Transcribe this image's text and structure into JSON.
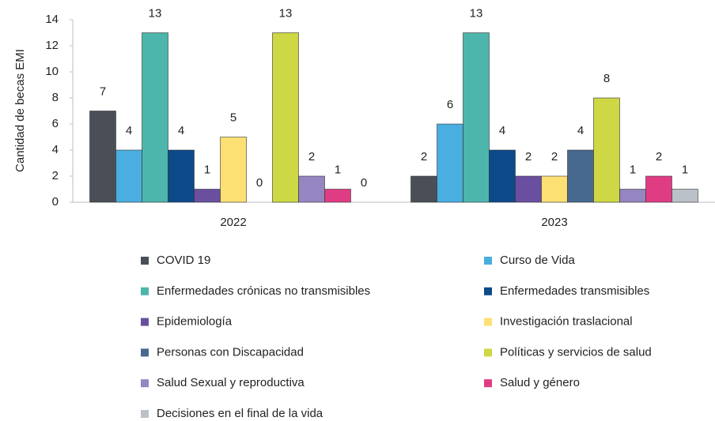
{
  "chart_data": {
    "type": "bar",
    "y_label": "Cantidad de becas EMI",
    "categories": [
      "2022",
      "2023"
    ],
    "ylim": [
      0,
      14
    ],
    "yticks": [
      0,
      2,
      4,
      6,
      8,
      10,
      12,
      14
    ],
    "grid": false,
    "series": [
      {
        "name": "COVID 19",
        "color": "#4a4f57",
        "values": [
          7,
          2
        ]
      },
      {
        "name": "Curso de Vida",
        "color": "#4aaee0",
        "values": [
          4,
          6
        ]
      },
      {
        "name": "Enfermedades crónicas no transmisibles",
        "color": "#4db6ac",
        "values": [
          13,
          13
        ]
      },
      {
        "name": "Enfermedades transmisibles",
        "color": "#0c4a8a",
        "values": [
          4,
          4
        ]
      },
      {
        "name": "Epidemiología",
        "color": "#6a4fa0",
        "values": [
          1,
          2
        ]
      },
      {
        "name": "Investigación traslacional",
        "color": "#fde074",
        "values": [
          5,
          2
        ]
      },
      {
        "name": "Personas con Discapacidad",
        "color": "#47698f",
        "values": [
          0,
          4
        ]
      },
      {
        "name": "Políticas y servicios de salud",
        "color": "#cdd844",
        "values": [
          13,
          8
        ]
      },
      {
        "name": "Salud Sexual y reproductiva",
        "color": "#9585c0",
        "values": [
          2,
          1
        ]
      },
      {
        "name": "Salud y género",
        "color": "#e03c84",
        "values": [
          1,
          2
        ]
      },
      {
        "name": "Decisiones en el final de la vida",
        "color": "#bcc0c8",
        "values": [
          0,
          1
        ]
      }
    ]
  }
}
